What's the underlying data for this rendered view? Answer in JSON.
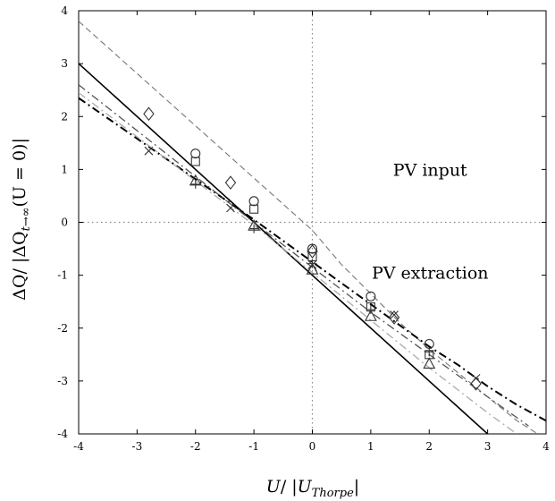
{
  "chart_data": {
    "type": "scatter",
    "title": "",
    "xlabel": "U/ |U_Thorpe|",
    "ylabel": "ΔQ/ |ΔQ_{t→∞}(U = 0)|",
    "xlim": [
      -4,
      4
    ],
    "ylim": [
      -4,
      4
    ],
    "x_ticks": [
      "-4",
      "-3",
      "-2",
      "-1",
      "0",
      "1",
      "2",
      "3",
      "4"
    ],
    "y_ticks": [
      "-4",
      "-3",
      "-2",
      "-1",
      "0",
      "1",
      "2",
      "3",
      "4"
    ],
    "grid": false,
    "reference_lines": [
      {
        "orientation": "vertical",
        "value": 0,
        "style": "dotted"
      },
      {
        "orientation": "horizontal",
        "value": 0,
        "style": "dotted"
      }
    ],
    "annotations": [
      {
        "text": "PV input",
        "x": 2.0,
        "y": 1.0
      },
      {
        "text": "PV extraction",
        "x": 2.0,
        "y": -0.95
      }
    ],
    "lines": [
      {
        "style": "solid",
        "color": "#000000",
        "points": [
          [
            -4,
            3.0
          ],
          [
            3.0,
            -4.0
          ]
        ]
      },
      {
        "style": "dashed",
        "color": "#777777",
        "points": [
          [
            -4,
            3.8
          ],
          [
            0.0,
            -0.15
          ],
          [
            0.5,
            -0.8
          ],
          [
            1.0,
            -1.35
          ],
          [
            1.5,
            -1.9
          ],
          [
            2.0,
            -2.4
          ],
          [
            2.5,
            -2.85
          ],
          [
            3.0,
            -3.3
          ],
          [
            3.5,
            -3.75
          ],
          [
            4.0,
            -4.1
          ]
        ]
      },
      {
        "style": "dashdot-heavy",
        "color": "#000000",
        "points": [
          [
            -4,
            2.35
          ],
          [
            -1.0,
            0.05
          ],
          [
            0.0,
            -0.75
          ],
          [
            0.5,
            -1.15
          ],
          [
            1.0,
            -1.55
          ],
          [
            1.5,
            -1.95
          ],
          [
            2.0,
            -2.35
          ],
          [
            2.5,
            -2.7
          ],
          [
            3.0,
            -3.1
          ],
          [
            3.5,
            -3.45
          ],
          [
            4.0,
            -3.75
          ]
        ]
      },
      {
        "style": "dashdot",
        "color": "#555555",
        "points": [
          [
            -4,
            2.6
          ],
          [
            -1.0,
            0.0
          ],
          [
            0.0,
            -0.85
          ],
          [
            1.0,
            -1.7
          ],
          [
            2.0,
            -2.5
          ],
          [
            3.0,
            -3.3
          ],
          [
            3.7,
            -3.85
          ]
        ]
      },
      {
        "style": "dashdot",
        "color": "#aaaaaa",
        "points": [
          [
            -4,
            2.45
          ],
          [
            -1.0,
            -0.05
          ],
          [
            0.0,
            -0.95
          ],
          [
            1.0,
            -1.85
          ],
          [
            2.0,
            -2.75
          ],
          [
            3.0,
            -3.6
          ],
          [
            3.5,
            -4.0
          ]
        ]
      }
    ],
    "series": [
      {
        "marker": "diamond",
        "points": [
          [
            -2.8,
            2.05
          ],
          [
            -1.4,
            0.75
          ],
          [
            0.0,
            -0.55
          ],
          [
            1.4,
            -1.8
          ],
          [
            2.8,
            -3.05
          ]
        ]
      },
      {
        "marker": "circle",
        "points": [
          [
            -2.0,
            1.3
          ],
          [
            -1.0,
            0.4
          ],
          [
            0.0,
            -0.5
          ],
          [
            1.0,
            -1.4
          ],
          [
            2.0,
            -2.3
          ]
        ]
      },
      {
        "marker": "square",
        "points": [
          [
            -2.0,
            1.15
          ],
          [
            -1.0,
            0.25
          ],
          [
            0.0,
            -0.65
          ],
          [
            1.0,
            -1.6
          ],
          [
            2.0,
            -2.5
          ]
        ]
      },
      {
        "marker": "plus",
        "points": [
          [
            -2.0,
            0.72
          ],
          [
            -1.0,
            -0.12
          ],
          [
            0.0,
            -0.78
          ],
          [
            1.0,
            -1.65
          ],
          [
            2.0,
            -2.45
          ]
        ]
      },
      {
        "marker": "cross",
        "points": [
          [
            -2.8,
            1.35
          ],
          [
            -1.4,
            0.27
          ],
          [
            0.0,
            -0.8
          ],
          [
            1.4,
            -1.75
          ],
          [
            2.8,
            -2.95
          ]
        ]
      },
      {
        "marker": "triangle",
        "points": [
          [
            -2.0,
            0.78
          ],
          [
            -1.0,
            -0.07
          ],
          [
            0.0,
            -0.9
          ],
          [
            1.0,
            -1.78
          ],
          [
            2.0,
            -2.68
          ]
        ]
      }
    ]
  }
}
